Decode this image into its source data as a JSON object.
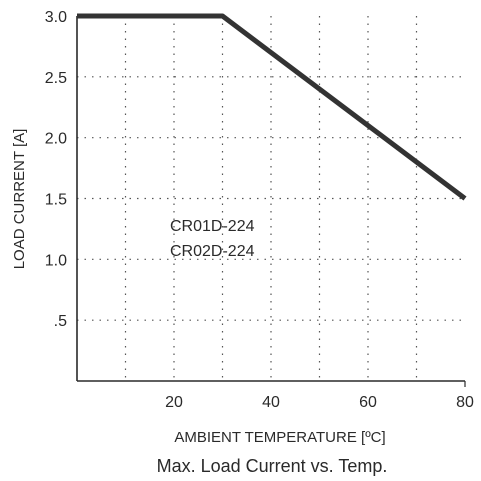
{
  "chart_data": {
    "type": "line",
    "title": "Max. Load Current vs. Temp.",
    "xlabel": "AMBIENT TEMPERATURE [ºC]",
    "ylabel": "LOAD CURRENT [A]",
    "xlim": [
      0,
      80
    ],
    "ylim": [
      0,
      3.0
    ],
    "x_ticks": [
      20,
      40,
      60,
      80
    ],
    "x_grid": [
      10,
      20,
      30,
      40,
      50,
      60,
      70
    ],
    "y_ticks": [
      {
        "value": 0.5,
        "label": ".5"
      },
      {
        "value": 1.0,
        "label": "1.0"
      },
      {
        "value": 1.5,
        "label": "1.5"
      },
      {
        "value": 2.0,
        "label": "2.0"
      },
      {
        "value": 2.5,
        "label": "2.5"
      },
      {
        "value": 3.0,
        "label": "3.0"
      }
    ],
    "grid": true,
    "series": [
      {
        "x": [
          0,
          30,
          80
        ],
        "y": [
          3.0,
          3.0,
          1.5
        ]
      }
    ],
    "annotations": [
      "CR01D-224",
      "CR02D-224"
    ]
  },
  "colors": {
    "line": "#333333",
    "axis": "#2a2a2a",
    "grid": "#555555"
  }
}
